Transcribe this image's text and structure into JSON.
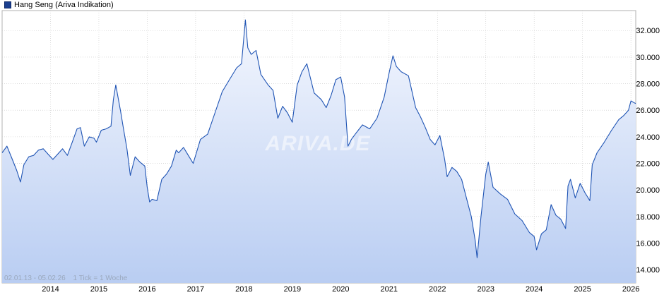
{
  "legend": {
    "label": "Hang Seng (Ariva Indikation)",
    "color": "#1a3f8f"
  },
  "footer": {
    "range": "02.01.13 - 05.02.26",
    "tick_note": "1 Tick = 1 Woche"
  },
  "watermark": "ARIVA.DE",
  "colors": {
    "line": "#1f54b4",
    "fill_top": "#f4f7fe",
    "fill_bottom": "#b9cdf2",
    "grid": "#c8c8c8"
  },
  "chart_data": {
    "type": "area",
    "title": "",
    "xlabel": "",
    "ylabel": "",
    "ylim": [
      13000,
      33500
    ],
    "xlim": [
      2013.0,
      2026.1
    ],
    "grid": true,
    "legend_position": "top-left",
    "y_ticks": [
      "14.000",
      "16.000",
      "18.000",
      "20.000",
      "22.000",
      "24.000",
      "26.000",
      "28.000",
      "30.000",
      "32.000"
    ],
    "x_ticks": [
      "2014",
      "2015",
      "2016",
      "2017",
      "2018",
      "2019",
      "2020",
      "2021",
      "2022",
      "2023",
      "2024",
      "2025",
      "2026"
    ],
    "series": [
      {
        "name": "Hang Seng (Ariva Indikation)",
        "x": [
          2013.0,
          2013.1,
          2013.2,
          2013.3,
          2013.38,
          2013.45,
          2013.55,
          2013.65,
          2013.75,
          2013.85,
          2013.95,
          2014.05,
          2014.15,
          2014.25,
          2014.35,
          2014.45,
          2014.55,
          2014.62,
          2014.7,
          2014.8,
          2014.9,
          2014.95,
          2015.05,
          2015.15,
          2015.25,
          2015.3,
          2015.35,
          2015.45,
          2015.5,
          2015.58,
          2015.65,
          2015.75,
          2015.85,
          2015.95,
          2016.0,
          2016.05,
          2016.1,
          2016.2,
          2016.3,
          2016.4,
          2016.5,
          2016.6,
          2016.65,
          2016.75,
          2016.85,
          2016.95,
          2017.1,
          2017.25,
          2017.4,
          2017.55,
          2017.7,
          2017.85,
          2017.95,
          2018.03,
          2018.08,
          2018.15,
          2018.25,
          2018.35,
          2018.5,
          2018.6,
          2018.7,
          2018.8,
          2018.9,
          2019.0,
          2019.1,
          2019.2,
          2019.3,
          2019.45,
          2019.6,
          2019.7,
          2019.8,
          2019.9,
          2020.0,
          2020.08,
          2020.15,
          2020.22,
          2020.3,
          2020.45,
          2020.6,
          2020.75,
          2020.9,
          2021.0,
          2021.08,
          2021.15,
          2021.25,
          2021.4,
          2021.55,
          2021.65,
          2021.75,
          2021.85,
          2021.95,
          2022.05,
          2022.15,
          2022.2,
          2022.3,
          2022.4,
          2022.5,
          2022.6,
          2022.7,
          2022.78,
          2022.82,
          2022.9,
          2023.0,
          2023.05,
          2023.15,
          2023.3,
          2023.45,
          2023.6,
          2023.75,
          2023.9,
          2024.0,
          2024.05,
          2024.15,
          2024.25,
          2024.35,
          2024.45,
          2024.55,
          2024.65,
          2024.7,
          2024.75,
          2024.85,
          2024.95,
          2025.05,
          2025.15,
          2025.2,
          2025.3,
          2025.45,
          2025.6,
          2025.75,
          2025.85,
          2025.95,
          2026.0,
          2026.1
        ],
        "values": [
          22800,
          23300,
          22400,
          21500,
          20600,
          21900,
          22500,
          22600,
          23000,
          23100,
          22700,
          22300,
          22700,
          23100,
          22600,
          23600,
          24600,
          24700,
          23300,
          24000,
          23900,
          23600,
          24500,
          24600,
          24800,
          26800,
          27900,
          25900,
          24800,
          23100,
          21100,
          22500,
          22100,
          21800,
          20200,
          19100,
          19300,
          19200,
          20800,
          21200,
          21800,
          23000,
          22800,
          23200,
          22600,
          22000,
          23800,
          24200,
          25800,
          27400,
          28300,
          29200,
          29500,
          32800,
          30700,
          30200,
          30500,
          28700,
          27900,
          27500,
          25400,
          26300,
          25800,
          25100,
          27900,
          28900,
          29500,
          27300,
          26800,
          26200,
          27100,
          28300,
          28500,
          27000,
          23300,
          23800,
          24200,
          24900,
          24600,
          25400,
          27000,
          28800,
          30100,
          29300,
          28900,
          28600,
          26200,
          25500,
          24700,
          23800,
          23400,
          24100,
          22300,
          21000,
          21700,
          21400,
          20800,
          19400,
          18000,
          16200,
          14900,
          18000,
          21200,
          22100,
          20200,
          19700,
          19300,
          18200,
          17700,
          16800,
          16500,
          15500,
          16700,
          17000,
          18900,
          18100,
          17800,
          17100,
          20300,
          20800,
          19400,
          20500,
          19800,
          19200,
          21900,
          22800,
          23600,
          24500,
          25300,
          25600,
          26000,
          26700,
          26500
        ]
      }
    ]
  }
}
